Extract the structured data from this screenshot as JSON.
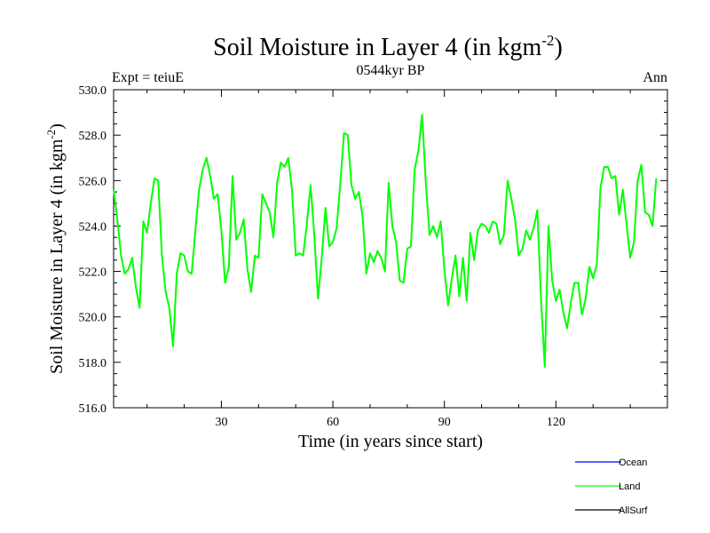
{
  "chart_data": {
    "type": "line",
    "title": "Soil Moisture in Layer 4 (in kgm",
    "title_sup": "-2",
    "title_end": ")",
    "subtitle_left": "Expt = teiuE",
    "subtitle_center": "0544kyr BP",
    "subtitle_right": "Ann",
    "xlabel": "Time (in years since start)",
    "ylabel": "Soil Moisture in Layer 4 (in kgm",
    "ylabel_sup": "-2",
    "ylabel_end": ")",
    "xlim": [
      1,
      150
    ],
    "ylim": [
      516.0,
      530.0
    ],
    "x_ticks": [
      30,
      60,
      90,
      120
    ],
    "x_tick_labels": [
      "30",
      "60",
      "90",
      "120"
    ],
    "y_ticks": [
      516,
      518,
      520,
      522,
      524,
      526,
      528,
      530
    ],
    "y_tick_labels": [
      "516.0",
      "518.0",
      "520.0",
      "522.0",
      "524.0",
      "526.0",
      "528.0",
      "530.0"
    ],
    "legend": [
      {
        "name": "Ocean",
        "color": "#0000ff"
      },
      {
        "name": "Land",
        "color": "#00ff00"
      },
      {
        "name": "AllSurf",
        "color": "#000000"
      }
    ],
    "series": [
      {
        "name": "Land",
        "color": "#00ff00",
        "x_start": 1,
        "x_step": 1,
        "values": [
          525.6,
          524.3,
          522.7,
          521.9,
          522.1,
          522.6,
          521.3,
          520.4,
          524.2,
          523.7,
          525.0,
          526.1,
          526.0,
          522.7,
          521.1,
          520.4,
          518.7,
          521.9,
          522.8,
          522.7,
          522.0,
          521.9,
          523.8,
          525.6,
          526.5,
          527.0,
          526.2,
          525.2,
          525.4,
          523.8,
          521.5,
          522.2,
          526.2,
          523.4,
          523.7,
          524.3,
          522.1,
          521.1,
          522.7,
          522.6,
          525.4,
          525.0,
          524.6,
          523.5,
          525.9,
          526.8,
          526.6,
          527.0,
          525.6,
          522.7,
          522.8,
          522.7,
          524.1,
          525.8,
          523.6,
          520.8,
          522.6,
          524.8,
          523.1,
          523.3,
          523.9,
          525.9,
          528.1,
          528.0,
          525.8,
          525.2,
          525.5,
          524.4,
          521.9,
          522.8,
          522.4,
          522.9,
          522.6,
          522.0,
          525.9,
          524.0,
          523.3,
          521.6,
          521.5,
          523.0,
          523.1,
          526.5,
          527.3,
          528.9,
          525.9,
          523.6,
          524.0,
          523.5,
          524.2,
          522.1,
          520.5,
          521.7,
          522.7,
          520.9,
          522.6,
          520.7,
          523.7,
          522.5,
          523.8,
          524.1,
          524.0,
          523.7,
          524.2,
          524.1,
          523.2,
          523.6,
          526.0,
          525.2,
          524.3,
          522.7,
          523.0,
          523.8,
          523.4,
          523.9,
          524.7,
          520.8,
          517.8,
          524.0,
          521.6,
          520.7,
          521.2,
          520.2,
          519.5,
          520.6,
          521.5,
          521.5,
          520.1,
          520.8,
          522.2,
          521.7,
          522.3,
          525.7,
          526.6,
          526.6,
          526.1,
          526.2,
          524.5,
          525.6,
          524.1,
          522.6,
          523.3,
          526.0,
          526.7,
          524.6,
          524.5,
          524.0,
          526.1
        ]
      }
    ]
  }
}
